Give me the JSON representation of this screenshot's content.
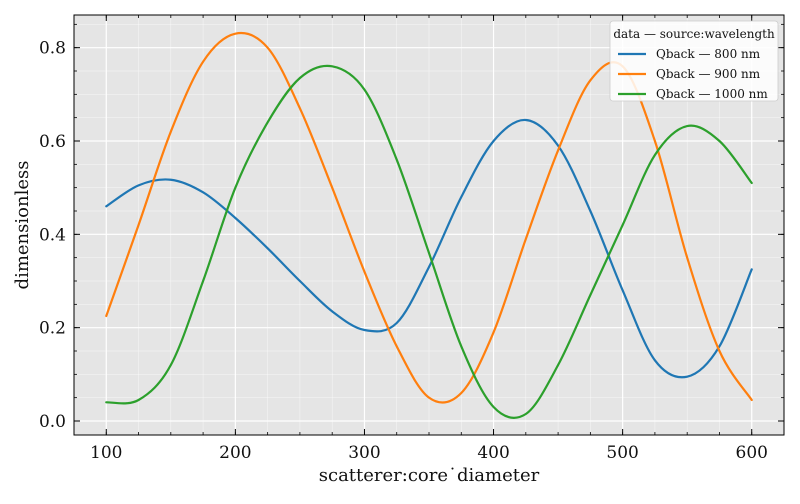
{
  "chart_data": {
    "type": "line",
    "title": "",
    "xlabel": "scatterer:core˙diameter",
    "ylabel": "dimensionless",
    "xlim": [
      75,
      625
    ],
    "ylim": [
      -0.03,
      0.87
    ],
    "xticks": [
      100,
      200,
      300,
      400,
      500,
      600
    ],
    "yticks": [
      0.0,
      0.2,
      0.4,
      0.6,
      0.8
    ],
    "grid": true,
    "background": "#e5e5e5",
    "legend": {
      "title": "data — source:wavelength",
      "placement": "top-right"
    },
    "x": [
      100,
      125,
      150,
      175,
      200,
      225,
      250,
      275,
      300,
      325,
      350,
      375,
      400,
      425,
      450,
      475,
      500,
      525,
      550,
      575,
      600
    ],
    "series": [
      {
        "name": "Qback — 800 nm",
        "color": "#1f77b4",
        "values": [
          0.46,
          0.505,
          0.517,
          0.49,
          0.435,
          0.37,
          0.3,
          0.235,
          0.195,
          0.21,
          0.33,
          0.48,
          0.6,
          0.645,
          0.59,
          0.45,
          0.28,
          0.13,
          0.095,
          0.16,
          0.325
        ]
      },
      {
        "name": "Qback — 900 nm",
        "color": "#ff7f0e",
        "values": [
          0.225,
          0.42,
          0.62,
          0.77,
          0.83,
          0.8,
          0.67,
          0.5,
          0.32,
          0.16,
          0.05,
          0.06,
          0.19,
          0.39,
          0.58,
          0.73,
          0.76,
          0.6,
          0.35,
          0.15,
          0.045
        ]
      },
      {
        "name": "Qback — 1000 nm",
        "color": "#2ca02c",
        "values": [
          0.04,
          0.045,
          0.12,
          0.3,
          0.5,
          0.64,
          0.735,
          0.76,
          0.71,
          0.56,
          0.36,
          0.16,
          0.03,
          0.015,
          0.12,
          0.27,
          0.42,
          0.57,
          0.632,
          0.6,
          0.51
        ]
      }
    ]
  }
}
